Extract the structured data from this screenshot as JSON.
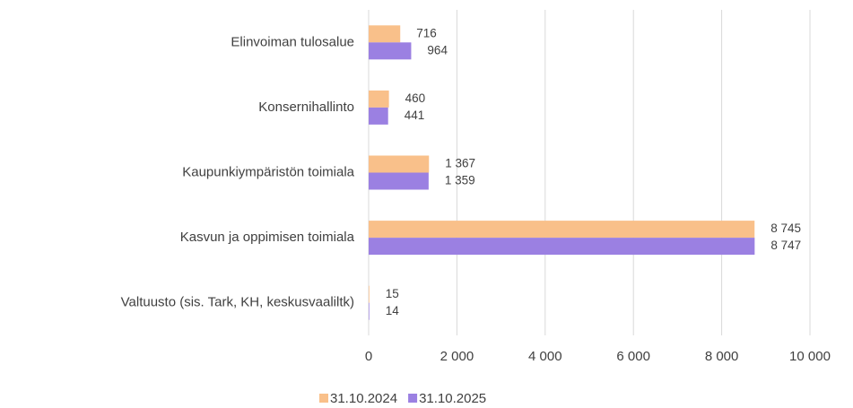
{
  "chart_data": {
    "type": "hbar",
    "categories": [
      "Elinvoiman tulosalue",
      "Konsernihallinto",
      "Kaupunkiympäristön toimiala",
      "Kasvun ja oppimisen toimiala",
      "Valtuusto (sis. Tark, KH, keskusvaaliltk)"
    ],
    "series": [
      {
        "name": "31.10.2024",
        "color": "#f9c08a",
        "values": [
          716,
          460,
          1367,
          8745,
          15
        ],
        "value_labels": [
          "716",
          "460",
          "1 367",
          "8 745",
          "15"
        ]
      },
      {
        "name": "31.10.2025",
        "color": "#9b80e2",
        "values": [
          964,
          441,
          1359,
          8747,
          14
        ],
        "value_labels": [
          "964",
          "441",
          "1 359",
          "8 747",
          "14"
        ]
      }
    ],
    "xlim": [
      0,
      10000
    ],
    "xticks": [
      0,
      {
        "value": 2000,
        "label": "2 000"
      },
      {
        "value": 4000,
        "label": "4 000"
      },
      {
        "value": 6000,
        "label": "6 000"
      },
      {
        "value": 8000,
        "label": "8 000"
      },
      {
        "value": 10000,
        "label": "10 000"
      }
    ],
    "grid": true,
    "legend": "bottom"
  }
}
